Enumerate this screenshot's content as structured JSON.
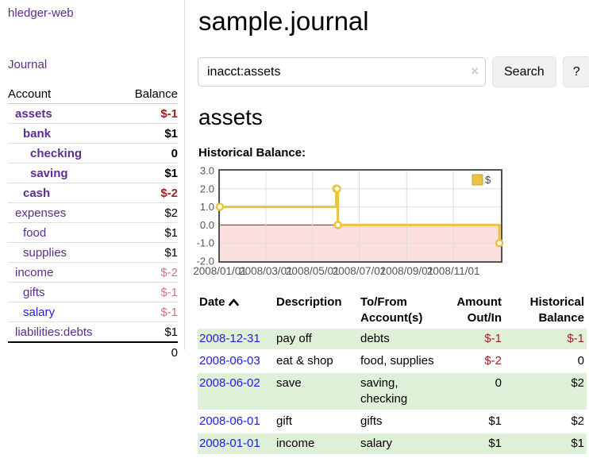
{
  "app": {
    "brand": "hledger-web"
  },
  "nav": {
    "journal": "Journal"
  },
  "sidebar": {
    "header": {
      "account": "Account",
      "balance": "Balance"
    },
    "rows": [
      {
        "name": "assets",
        "balance": "$-1"
      },
      {
        "name": "bank",
        "balance": "$1"
      },
      {
        "name": "checking",
        "balance": "0"
      },
      {
        "name": "saving",
        "balance": "$1"
      },
      {
        "name": "cash",
        "balance": "$-2"
      },
      {
        "name": "expenses",
        "balance": "$2"
      },
      {
        "name": "food",
        "balance": "$1"
      },
      {
        "name": "supplies",
        "balance": "$1"
      },
      {
        "name": "income",
        "balance": "$-2"
      },
      {
        "name": "gifts",
        "balance": "$-1"
      },
      {
        "name": "salary",
        "balance": "$-1"
      },
      {
        "name": "liabilities:debts",
        "balance": "$1"
      }
    ],
    "total": "0"
  },
  "main": {
    "title": "sample.journal",
    "search": {
      "value": "inacct:assets",
      "clear_icon": "×",
      "button": "Search",
      "help": "?"
    },
    "account_heading": "assets",
    "chart_label": "Historical Balance:"
  },
  "chart_data": {
    "type": "line",
    "steps": true,
    "title": "Historical Balance",
    "x_start": "2008-01-01",
    "x_span_days": 367,
    "ylim": [
      -2,
      3
    ],
    "yticks": [
      {
        "v": 3,
        "label": "3.0"
      },
      {
        "v": 2,
        "label": "2.0"
      },
      {
        "v": 1,
        "label": "1.0"
      },
      {
        "v": 0,
        "label": "0.0"
      },
      {
        "v": -1,
        "label": "-1.0"
      },
      {
        "v": -2,
        "label": "-2.0"
      }
    ],
    "xticks": [
      {
        "date": "2008-01-01",
        "label": "2008/01/01"
      },
      {
        "date": "2008-03-01",
        "label": "2008/03/01"
      },
      {
        "date": "2008-05-01",
        "label": "2008/05/01"
      },
      {
        "date": "2008-07-01",
        "label": "2008/07/01"
      },
      {
        "date": "2008-09-01",
        "label": "2008/09/01"
      },
      {
        "date": "2008-11-01",
        "label": "2008/11/01"
      }
    ],
    "series": [
      {
        "name": "$",
        "color": "#edc240",
        "points": [
          [
            "2008-01-01",
            1
          ],
          [
            "2008-06-01",
            2
          ],
          [
            "2008-06-02",
            2
          ],
          [
            "2008-06-03",
            0
          ],
          [
            "2008-12-31",
            -1
          ]
        ]
      }
    ],
    "legend": {
      "label": "$",
      "position": "top-right"
    },
    "colors": {
      "negative_fill": "#fbdede",
      "zero_line": "#941f1f",
      "border": "#545454",
      "grid": "#dddddd",
      "axis_text": "#545454"
    },
    "grid": true
  },
  "register": {
    "headers": {
      "date": "Date",
      "description": "Description",
      "accounts": "To/From Account(s)",
      "amount": "Amount Out/In",
      "balance": "Historical Balance"
    },
    "sort_icon": "chevron-up",
    "rows": [
      {
        "date": "2008-12-31",
        "description": "pay off",
        "accounts": "debts",
        "amount": "$-1",
        "balance": "$-1"
      },
      {
        "date": "2008-06-03",
        "description": "eat & shop",
        "accounts": "food, supplies",
        "amount": "$-2",
        "balance": "0"
      },
      {
        "date": "2008-06-02",
        "description": "save",
        "accounts": "saving, checking",
        "amount": "0",
        "balance": "$2"
      },
      {
        "date": "2008-06-01",
        "description": "gift",
        "accounts": "gifts",
        "amount": "$1",
        "balance": "$2"
      },
      {
        "date": "2008-01-01",
        "description": "income",
        "accounts": "salary",
        "amount": "$1",
        "balance": "$1"
      }
    ]
  }
}
